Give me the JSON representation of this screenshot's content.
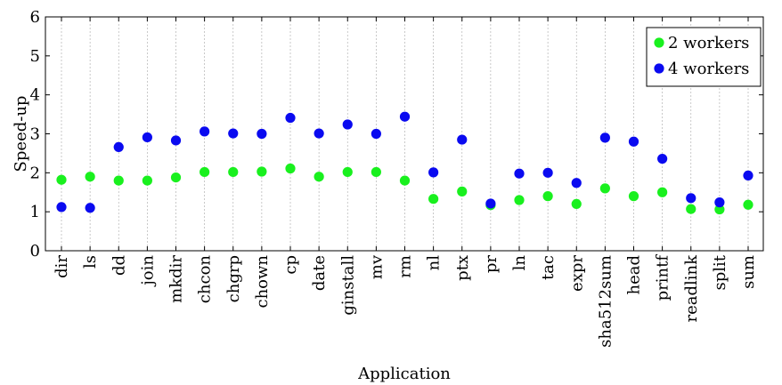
{
  "chart_data": {
    "type": "scatter",
    "xlabel": "Application",
    "ylabel": "Speed-up",
    "ylim": [
      0,
      6
    ],
    "yticks": [
      0,
      1,
      2,
      3,
      4,
      5,
      6
    ],
    "grid": "vertical",
    "legend_position": "top-right",
    "categories": [
      "dir",
      "ls",
      "dd",
      "join",
      "mkdir",
      "chcon",
      "chgrp",
      "chown",
      "cp",
      "date",
      "ginstall",
      "mv",
      "rm",
      "nl",
      "ptx",
      "pr",
      "ln",
      "tac",
      "expr",
      "sha512sum",
      "head",
      "printf",
      "readlink",
      "split",
      "sum"
    ],
    "series": [
      {
        "name": "2 workers",
        "color": "#19f01e",
        "values": [
          1.82,
          1.9,
          1.8,
          1.8,
          1.88,
          2.02,
          2.02,
          2.03,
          2.11,
          1.9,
          2.02,
          2.02,
          1.8,
          1.33,
          1.52,
          1.17,
          1.3,
          1.4,
          1.2,
          1.6,
          1.4,
          1.5,
          1.07,
          1.06,
          1.18
        ]
      },
      {
        "name": "4 workers",
        "color": "#0a0af0",
        "values": [
          1.12,
          1.1,
          2.66,
          2.91,
          2.83,
          3.06,
          3.01,
          3.0,
          3.41,
          3.01,
          3.24,
          3.0,
          3.44,
          2.01,
          2.85,
          1.21,
          1.98,
          2.0,
          1.74,
          2.9,
          2.8,
          2.36,
          1.35,
          1.24,
          1.93
        ]
      }
    ]
  }
}
